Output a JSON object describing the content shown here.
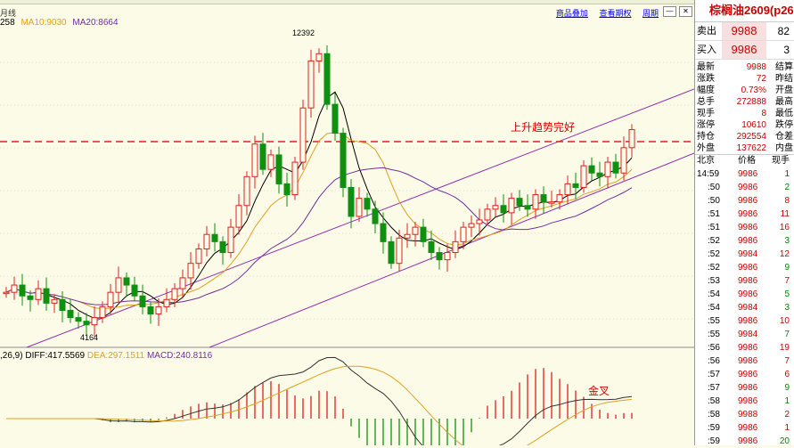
{
  "period_label": "月线",
  "ma_legend": {
    "ma5": "258",
    "ma10": "MA10:9030",
    "ma20": "MA20:8664"
  },
  "tab_links": [
    "商品叠加",
    "查看期权",
    "周期"
  ],
  "high_label": "12392",
  "low_label": "4164",
  "annotation_trend": "上升趋势完好",
  "annotation_cross": "金叉",
  "macd_legend": {
    "params": ",26,9)",
    "diff": "DIFF:417.5569",
    "dea": "DEA:297.1511",
    "macd": "MACD:240.8116"
  },
  "right_panel": {
    "title": "棕榈油2609",
    "title_suffix": "(p26",
    "ask": {
      "label": "卖出",
      "price": "9988",
      "vol": "82"
    },
    "bid": {
      "label": "买入",
      "price": "9986",
      "vol": "3"
    },
    "stats": [
      {
        "l": "最新",
        "v": "9988",
        "l2": "结算"
      },
      {
        "l": "涨跌",
        "v": "72",
        "l2": "昨结"
      },
      {
        "l": "幅度",
        "v": "0.73%",
        "l2": "开盘"
      },
      {
        "l": "总手",
        "v": "272888",
        "l2": "最高"
      },
      {
        "l": "现手",
        "v": "8",
        "l2": "最低"
      },
      {
        "l": "涨停",
        "v": "10610",
        "l2": "跌停"
      },
      {
        "l": "持仓",
        "v": "292554",
        "l2": "仓差"
      },
      {
        "l": "外盘",
        "v": "137622",
        "l2": "内盘"
      }
    ],
    "tick_header": {
      "place": "北京",
      "price": "价格",
      "vol": "现手"
    },
    "first_time": "14:59",
    "ticks": [
      {
        "t": ":59",
        "p": "9986",
        "q": "1"
      },
      {
        "t": ":50",
        "p": "9986",
        "q": "2"
      },
      {
        "t": ":50",
        "p": "9986",
        "q": "8"
      },
      {
        "t": ":51",
        "p": "9986",
        "q": "11"
      },
      {
        "t": ":51",
        "p": "9986",
        "q": "16"
      },
      {
        "t": ":52",
        "p": "9986",
        "q": "3"
      },
      {
        "t": ":52",
        "p": "9984",
        "q": "12"
      },
      {
        "t": ":52",
        "p": "9986",
        "q": "9"
      },
      {
        "t": ":53",
        "p": "9986",
        "q": "7"
      },
      {
        "t": ":54",
        "p": "9986",
        "q": "5"
      },
      {
        "t": ":54",
        "p": "9984",
        "q": "3"
      },
      {
        "t": ":55",
        "p": "9986",
        "q": "10"
      },
      {
        "t": ":55",
        "p": "9984",
        "q": "7"
      },
      {
        "t": ":56",
        "p": "9986",
        "q": "19"
      },
      {
        "t": ":56",
        "p": "9986",
        "q": "7"
      },
      {
        "t": ":57",
        "p": "9986",
        "q": "6"
      },
      {
        "t": ":57",
        "p": "9986",
        "q": "9"
      },
      {
        "t": ":58",
        "p": "9986",
        "q": "1"
      },
      {
        "t": ":58",
        "p": "9988",
        "q": "2"
      },
      {
        "t": ":59",
        "p": "9986",
        "q": "1"
      },
      {
        "t": ":59",
        "p": "9986",
        "q": "20"
      }
    ],
    "tick_colors": [
      "red",
      "green",
      "red",
      "red",
      "red",
      "green",
      "red",
      "green",
      "red",
      "green",
      "green",
      "red",
      "green",
      "red",
      "red",
      "red",
      "green",
      "green",
      "red",
      "red",
      "green"
    ]
  },
  "colors": {
    "up": "#e02020",
    "down": "#109010",
    "dashed": "#e02020",
    "channel": "#9030b0",
    "ma5": "#000000",
    "ma10": "#e0a020",
    "ma20": "#7030a0"
  }
}
